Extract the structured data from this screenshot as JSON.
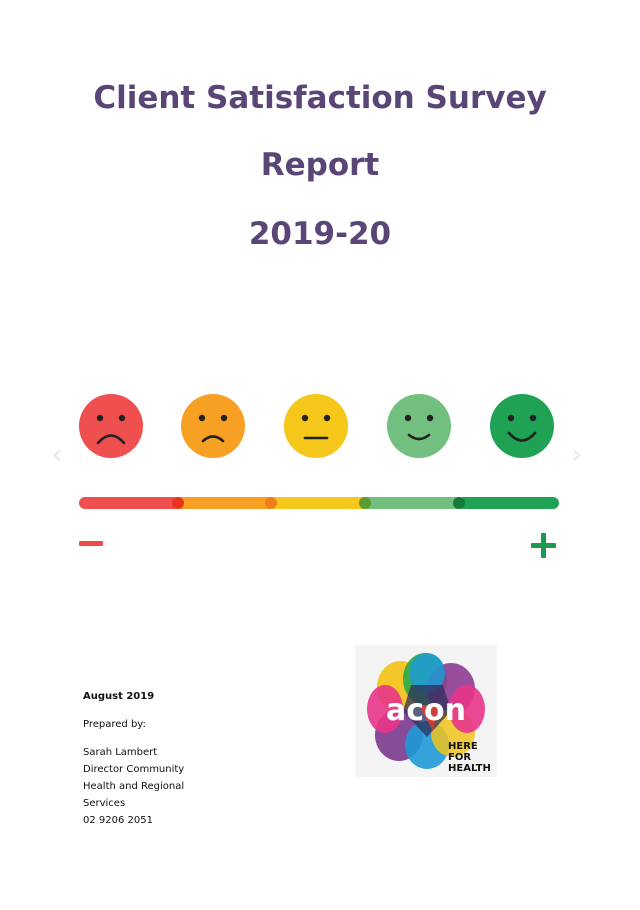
{
  "title": {
    "line1": "Client Satisfaction Survey",
    "line2": "Report",
    "line3": "2019-20"
  },
  "rating_scale": {
    "faces": [
      {
        "name": "very-sad-face-icon",
        "color": "#f04f4f"
      },
      {
        "name": "sad-face-icon",
        "color": "#f7a023"
      },
      {
        "name": "neutral-face-icon",
        "color": "#f5c71a"
      },
      {
        "name": "smiling-face-icon",
        "color": "#72bf80"
      },
      {
        "name": "happy-face-icon",
        "color": "#1fa254"
      }
    ],
    "bar_colors": [
      "#f04f4f",
      "#f7a023",
      "#f5c71a",
      "#72bf80",
      "#1fa254"
    ],
    "minus_color": "#ef4b4b",
    "plus_color": "#1a9a4e"
  },
  "prepared": {
    "date": "August 2019",
    "prepared_by": "Prepared by:",
    "name": "Sarah Lambert",
    "role_line1": "Director Community",
    "role_line2": "Health and Regional",
    "role_line3": "Services",
    "phone": "02 9206 2051"
  },
  "logo": {
    "wordmark": "acon",
    "tagline_1": "HERE",
    "tagline_2": "FOR",
    "tagline_3": "HEALTH"
  }
}
